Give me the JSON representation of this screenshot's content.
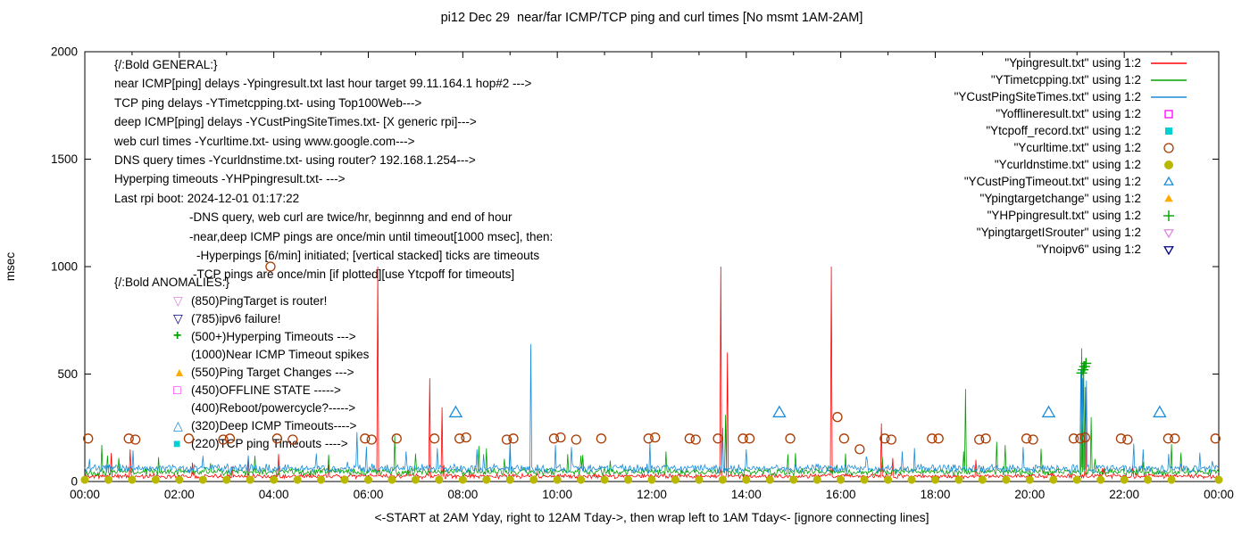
{
  "title": "pi12 Dec 29  near/far ICMP/TCP ping and curl times [No msmt 1AM-2AM]",
  "axes": {
    "ylabel": "msec",
    "xlabel": "<-START at 2AM Yday, right to 12AM Tday->, then wrap left to 1AM Tday<- [ignore connecting lines]",
    "x_ticks": [
      "00:00",
      "02:00",
      "04:00",
      "06:00",
      "08:00",
      "10:00",
      "12:00",
      "14:00",
      "16:00",
      "18:00",
      "20:00",
      "22:00",
      "00:00"
    ],
    "y_ticks": [
      "0",
      "500",
      "1000",
      "1500",
      "2000"
    ],
    "xlim": [
      0,
      24
    ],
    "ylim": [
      0,
      2000
    ]
  },
  "colors": {
    "near_icmp": "#ff0000",
    "tcp_ping": "#00a000",
    "deep_icmp": "#1a8cd8",
    "offline": "#ff00ff",
    "tcpoff": "#00d0d0",
    "curl": "#aa3a00",
    "dns": "#b8b800",
    "ping_timeout": "#1a8cd8",
    "target_change": "#ffaa00",
    "hyperping": "#00a000",
    "target_is_router": "#dd88dd",
    "noipv6": "#000080"
  },
  "legend": [
    {
      "label": "\"Ypingresult.txt\" using 1:2",
      "style": "line",
      "color": "#ff0000"
    },
    {
      "label": "\"YTimetcpping.txt\" using 1:2",
      "style": "line",
      "color": "#00a000"
    },
    {
      "label": "\"YCustPingSiteTimes.txt\" using 1:2",
      "style": "line",
      "color": "#1a8cd8"
    },
    {
      "label": "\"Yofflineresult.txt\" using 1:2",
      "style": "square-open",
      "color": "#ff00ff"
    },
    {
      "label": "\"Ytcpoff_record.txt\" using 1:2",
      "style": "square-filled",
      "color": "#00d0d0"
    },
    {
      "label": "\"Ycurltime.txt\" using 1:2",
      "style": "circle-open",
      "color": "#aa3a00"
    },
    {
      "label": "\"Ycurldnstime.txt\" using 1:2",
      "style": "circle-filled",
      "color": "#b8b800"
    },
    {
      "label": "\"YCustPingTimeout.txt\" using 1:2",
      "style": "triangle-up-open",
      "color": "#1a8cd8"
    },
    {
      "label": "\"Ypingtargetchange\" using 1:2",
      "style": "triangle-up-filled",
      "color": "#ffaa00"
    },
    {
      "label": "\"YHPpingresult.txt\" using 1:2",
      "style": "plus",
      "color": "#00a000"
    },
    {
      "label": "\"YpingtargetISrouter\" using 1:2",
      "style": "triangle-down-open",
      "color": "#dd88dd"
    },
    {
      "label": "\"Ynoipv6\" using 1:2",
      "style": "triangle-down-open",
      "color": "#000080"
    }
  ],
  "annotations": {
    "general": {
      "lines": [
        {
          "text": "{/:Bold GENERAL:}",
          "indent": 0
        },
        {
          "text": "near ICMP[ping] delays -Ypingresult.txt last hour target 99.11.164.1 hop#2 --->",
          "indent": 0
        },
        {
          "text": "TCP ping delays -YTimetcpping.txt- using Top100Web--->",
          "indent": 0
        },
        {
          "text": "deep ICMP[ping] delays -YCustPingSiteTimes.txt- [X generic rpi]--->",
          "indent": 0
        },
        {
          "text": "web curl times -Ycurltime.txt- using www.google.com--->",
          "indent": 0
        },
        {
          "text": "DNS query times -Ycurldnstime.txt- using router? 192.168.1.254--->",
          "indent": 0
        },
        {
          "text": "Hyperping timeouts -YHPpingresult.txt- --->",
          "indent": 0
        },
        {
          "text": "Last rpi boot: 2024-12-01 01:17:22",
          "indent": 0
        },
        {
          "text": "-DNS query, web curl are twice/hr, beginnng and end of hour",
          "indent": 84
        },
        {
          "text": "-near,deep ICMP pings are once/min until timeout[1000 msec], then:",
          "indent": 84
        },
        {
          "text": "-Hyperpings [6/min] initiated; [vertical stacked] ticks are timeouts",
          "indent": 92
        },
        {
          "text": "-TCP pings are once/min [if plotted][use Ytcpoff for timeouts]",
          "indent": 88
        }
      ]
    },
    "anomalies": {
      "header": "{/:Bold ANOMALIES:}",
      "items": [
        {
          "marker": "triangle-down-open",
          "color": "#dd88dd",
          "text": "(850)PingTarget is router!"
        },
        {
          "marker": "triangle-down-open",
          "color": "#000080",
          "text": "(785)ipv6 failure!"
        },
        {
          "marker": "plus",
          "color": "#00a000",
          "text": "(500+)Hyperping Timeouts --->"
        },
        {
          "marker": "none",
          "color": "",
          "text": "(1000)Near ICMP Timeout spikes"
        },
        {
          "marker": "triangle-up-filled",
          "color": "#ffaa00",
          "text": "(550)Ping Target Changes --->"
        },
        {
          "marker": "square-open",
          "color": "#ff00ff",
          "text": "(450)OFFLINE STATE ----->"
        },
        {
          "marker": "none",
          "color": "",
          "text": "(400)Reboot/powercycle?----->"
        },
        {
          "marker": "triangle-up-open",
          "color": "#1a8cd8",
          "text": "(320)Deep ICMP Timeouts---->"
        },
        {
          "marker": "square-filled",
          "color": "#00d0d0",
          "text": "(220)TCP ping Timeouts ---->"
        }
      ]
    }
  },
  "chart_data": {
    "type": "line",
    "x_unit": "hours since 2AM yesterday",
    "xlim": [
      0,
      24
    ],
    "ylim": [
      0,
      2000
    ],
    "grid": false,
    "legend_position": "top-right",
    "line_series": [
      {
        "name": "Ypingresult.txt near ICMP ping delay",
        "color": "#ff0000",
        "baseline": 25,
        "noise": 14,
        "seed": 11,
        "spikes": [
          [
            0.95,
            150
          ],
          [
            6.2,
            1000
          ],
          [
            7.3,
            480
          ],
          [
            7.55,
            345
          ],
          [
            13.45,
            1000
          ],
          [
            13.6,
            600
          ],
          [
            15.8,
            1000
          ],
          [
            16.85,
            270
          ],
          [
            21.17,
            440
          ]
        ]
      },
      {
        "name": "YTimetcpping.txt TCP ping delay",
        "color": "#00a000",
        "baseline": 45,
        "noise": 22,
        "seed": 22,
        "spikes": [
          [
            0.35,
            170
          ],
          [
            3.6,
            120
          ],
          [
            5.15,
            125
          ],
          [
            6.55,
            215
          ],
          [
            7.0,
            130
          ],
          [
            9.0,
            150
          ],
          [
            10.5,
            120
          ],
          [
            12.3,
            140
          ],
          [
            13.55,
            310
          ],
          [
            16.1,
            130
          ],
          [
            18.65,
            430
          ],
          [
            19.3,
            185
          ],
          [
            21.1,
            620
          ],
          [
            21.14,
            560
          ],
          [
            21.3,
            300
          ],
          [
            23.2,
            135
          ]
        ]
      },
      {
        "name": "YCustPingSiteTimes.txt deep ICMP delay",
        "color": "#1a8cd8",
        "baseline": 60,
        "noise": 26,
        "seed": 33,
        "spikes": [
          [
            0.1,
            105
          ],
          [
            2.5,
            120
          ],
          [
            4.9,
            130
          ],
          [
            5.75,
            230
          ],
          [
            6.8,
            140
          ],
          [
            7.45,
            155
          ],
          [
            8.3,
            150
          ],
          [
            9.0,
            200
          ],
          [
            9.45,
            640
          ],
          [
            10.3,
            160
          ],
          [
            11.95,
            185
          ],
          [
            13.5,
            250
          ],
          [
            14.0,
            150
          ],
          [
            17.3,
            140
          ],
          [
            19.85,
            160
          ],
          [
            21.08,
            520
          ],
          [
            21.12,
            480
          ],
          [
            21.2,
            470
          ],
          [
            22.4,
            150
          ],
          [
            23.85,
            95
          ]
        ]
      }
    ],
    "scatter_series": [
      {
        "name": "Ycurltime.txt web curl times",
        "marker": "circle-open",
        "color": "#aa3a00",
        "size": 5,
        "points": [
          [
            0.07,
            200
          ],
          [
            0.93,
            200
          ],
          [
            1.07,
            195
          ],
          [
            2.2,
            200
          ],
          [
            2.93,
            195
          ],
          [
            3.07,
            200
          ],
          [
            3.93,
            1000
          ],
          [
            4.07,
            200
          ],
          [
            4.4,
            195
          ],
          [
            5.93,
            200
          ],
          [
            6.07,
            195
          ],
          [
            6.6,
            200
          ],
          [
            7.4,
            200
          ],
          [
            7.93,
            200
          ],
          [
            8.07,
            205
          ],
          [
            8.93,
            195
          ],
          [
            9.07,
            200
          ],
          [
            9.93,
            200
          ],
          [
            10.07,
            205
          ],
          [
            10.4,
            195
          ],
          [
            10.93,
            200
          ],
          [
            11.93,
            200
          ],
          [
            12.07,
            205
          ],
          [
            12.8,
            200
          ],
          [
            12.93,
            195
          ],
          [
            13.4,
            200
          ],
          [
            13.93,
            200
          ],
          [
            14.07,
            200
          ],
          [
            14.93,
            200
          ],
          [
            15.93,
            300
          ],
          [
            16.07,
            200
          ],
          [
            16.4,
            150
          ],
          [
            16.93,
            200
          ],
          [
            17.07,
            195
          ],
          [
            17.93,
            200
          ],
          [
            18.07,
            200
          ],
          [
            18.93,
            195
          ],
          [
            19.07,
            200
          ],
          [
            19.93,
            200
          ],
          [
            20.07,
            195
          ],
          [
            20.93,
            200
          ],
          [
            21.07,
            200
          ],
          [
            21.17,
            205
          ],
          [
            21.93,
            200
          ],
          [
            22.07,
            195
          ],
          [
            22.93,
            200
          ],
          [
            23.07,
            200
          ],
          [
            23.93,
            200
          ]
        ]
      },
      {
        "name": "Ycurldnstime.txt DNS query times",
        "marker": "circle-filled",
        "color": "#b8b800",
        "size": 4.5,
        "points": [
          [
            0,
            8
          ],
          [
            0.5,
            8
          ],
          [
            1,
            8
          ],
          [
            1.5,
            8
          ],
          [
            2,
            8
          ],
          [
            2.5,
            8
          ],
          [
            3,
            8
          ],
          [
            3.5,
            8
          ],
          [
            4,
            8
          ],
          [
            4.5,
            8
          ],
          [
            5,
            8
          ],
          [
            5.5,
            8
          ],
          [
            6,
            8
          ],
          [
            6.5,
            8
          ],
          [
            7,
            8
          ],
          [
            7.5,
            8
          ],
          [
            8,
            8
          ],
          [
            8.5,
            8
          ],
          [
            9,
            8
          ],
          [
            9.5,
            8
          ],
          [
            10,
            8
          ],
          [
            10.5,
            8
          ],
          [
            11,
            8
          ],
          [
            11.5,
            8
          ],
          [
            12,
            8
          ],
          [
            12.5,
            8
          ],
          [
            13,
            8
          ],
          [
            13.5,
            8
          ],
          [
            14,
            8
          ],
          [
            14.5,
            8
          ],
          [
            15,
            8
          ],
          [
            15.5,
            8
          ],
          [
            16,
            8
          ],
          [
            16.5,
            8
          ],
          [
            17,
            8
          ],
          [
            17.5,
            8
          ],
          [
            18,
            8
          ],
          [
            18.5,
            8
          ],
          [
            19,
            8
          ],
          [
            19.5,
            8
          ],
          [
            20,
            8
          ],
          [
            20.5,
            8
          ],
          [
            21,
            8
          ],
          [
            21.5,
            8
          ],
          [
            22,
            8
          ],
          [
            22.5,
            8
          ],
          [
            23,
            8
          ],
          [
            24,
            8
          ]
        ]
      },
      {
        "name": "YCustPingTimeout.txt deep ICMP timeouts",
        "marker": "triangle-up-open",
        "color": "#1a8cd8",
        "size": 7,
        "points": [
          [
            7.85,
            320
          ],
          [
            14.7,
            320
          ],
          [
            20.4,
            320
          ],
          [
            22.75,
            320
          ]
        ]
      },
      {
        "name": "YHPpingresult.txt hyperping timeouts",
        "marker": "plus",
        "color": "#00a000",
        "size": 6,
        "points": [
          [
            21.1,
            505
          ],
          [
            21.13,
            520
          ],
          [
            21.16,
            535
          ],
          [
            21.19,
            550
          ]
        ]
      }
    ]
  }
}
